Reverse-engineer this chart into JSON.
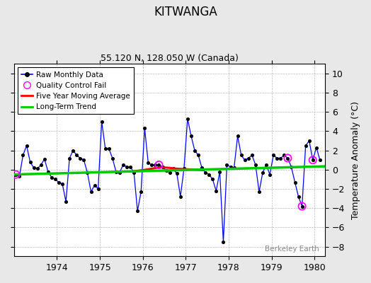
{
  "title": "KITWANGA",
  "subtitle": "55.120 N, 128.050 W (Canada)",
  "ylabel": "Temperature Anomaly (°C)",
  "watermark": "Berkeley Earth",
  "ylim": [
    -9,
    11
  ],
  "yticks": [
    -8,
    -6,
    -4,
    -2,
    0,
    2,
    4,
    6,
    8,
    10
  ],
  "xlim_start": 1973.0,
  "xlim_end": 1980.25,
  "bg_color": "#e8e8e8",
  "plot_bg_color": "#ffffff",
  "raw_data": [
    1973.042,
    -0.5,
    1973.125,
    -0.7,
    1973.208,
    1.5,
    1973.292,
    2.5,
    1973.375,
    0.8,
    1973.458,
    0.2,
    1973.542,
    0.1,
    1973.625,
    0.5,
    1973.708,
    1.1,
    1973.792,
    -0.2,
    1973.875,
    -0.8,
    1973.958,
    -1.0,
    1974.042,
    -1.3,
    1974.125,
    -1.5,
    1974.208,
    -3.3,
    1974.292,
    1.2,
    1974.375,
    2.0,
    1974.458,
    1.5,
    1974.542,
    1.2,
    1974.625,
    1.0,
    1974.708,
    -0.3,
    1974.792,
    -2.3,
    1974.875,
    -1.6,
    1974.958,
    -2.0,
    1975.042,
    5.0,
    1975.125,
    2.2,
    1975.208,
    2.2,
    1975.292,
    1.2,
    1975.375,
    -0.2,
    1975.458,
    -0.3,
    1975.542,
    0.5,
    1975.625,
    0.3,
    1975.708,
    0.3,
    1975.792,
    -0.3,
    1975.875,
    -4.3,
    1975.958,
    -2.3,
    1976.042,
    4.3,
    1976.125,
    0.7,
    1976.208,
    0.5,
    1976.292,
    0.5,
    1976.375,
    0.5,
    1976.458,
    0.3,
    1976.542,
    -0.1,
    1976.625,
    -0.3,
    1976.708,
    0.1,
    1976.792,
    -0.4,
    1976.875,
    -2.8,
    1976.958,
    0.1,
    1977.042,
    5.3,
    1977.125,
    3.5,
    1977.208,
    2.0,
    1977.292,
    1.5,
    1977.375,
    0.2,
    1977.458,
    -0.3,
    1977.542,
    -0.5,
    1977.625,
    -1.0,
    1977.708,
    -2.2,
    1977.792,
    -0.2,
    1977.875,
    -7.5,
    1977.958,
    0.5,
    1978.042,
    0.3,
    1978.125,
    0.2,
    1978.208,
    3.5,
    1978.292,
    1.5,
    1978.375,
    1.0,
    1978.458,
    1.2,
    1978.542,
    1.5,
    1978.625,
    0.5,
    1978.708,
    -2.3,
    1978.792,
    -0.3,
    1978.875,
    0.5,
    1978.958,
    -0.5,
    1979.042,
    1.5,
    1979.125,
    1.2,
    1979.208,
    1.2,
    1979.292,
    1.5,
    1979.375,
    1.2,
    1979.458,
    0.3,
    1979.542,
    -1.3,
    1979.625,
    -2.8,
    1979.708,
    -3.8,
    1979.792,
    2.5,
    1979.875,
    3.0,
    1979.958,
    1.0,
    1980.042,
    2.3,
    1980.125,
    1.0
  ],
  "qc_fail_x": [
    1973.042,
    1976.375,
    1979.375,
    1979.708,
    1979.958
  ],
  "qc_fail_y": [
    -0.5,
    0.5,
    1.2,
    -3.8,
    1.0
  ],
  "moving_avg_x": [
    1975.8,
    1976.0,
    1976.2,
    1976.4,
    1976.6,
    1976.8,
    1977.0,
    1977.2,
    1977.4
  ],
  "moving_avg_y": [
    -0.15,
    -0.05,
    0.1,
    0.25,
    0.2,
    0.1,
    0.05,
    0.0,
    -0.05
  ],
  "trend_x": [
    1973.0,
    1980.25
  ],
  "trend_y": [
    -0.5,
    0.35
  ],
  "xtick_years": [
    1974,
    1975,
    1976,
    1977,
    1978,
    1979,
    1980
  ]
}
